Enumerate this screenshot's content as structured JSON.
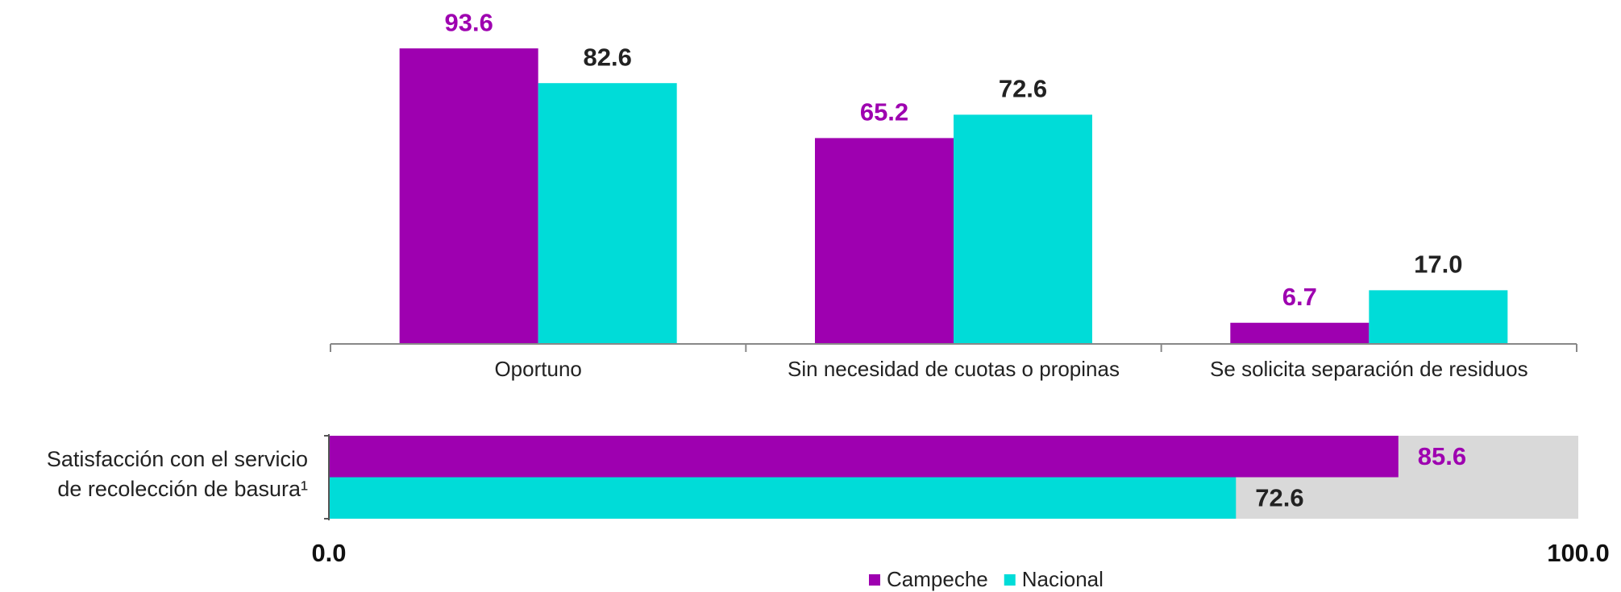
{
  "chart_data": [
    {
      "type": "bar",
      "categories": [
        "Oportuno",
        "Sin necesidad de cuotas o propinas",
        "Se solicita separación de residuos"
      ],
      "series": [
        {
          "color": "#9e00b0",
          "label_color": "#9e00b0",
          "values": [
            93.6,
            65.2,
            6.7
          ]
        },
        {
          "color": "#00dcd8",
          "label_color": "#222222",
          "values": [
            82.6,
            72.6,
            17.0
          ],
          "value_labels": [
            "82.6",
            "72.6",
            "17.0"
          ]
        }
      ],
      "ylim": [
        0,
        100
      ]
    },
    {
      "type": "hbar",
      "categories": [
        "Satisfacción con el servicio\nde recolección de basura¹"
      ],
      "series": [
        {
          "name": "Campeche",
          "color": "#9e00b0",
          "label_color": "#9e00b0",
          "values": [
            85.6
          ]
        },
        {
          "name": "Nacional",
          "color": "#00dcd8",
          "label_color": "#222222",
          "values": [
            72.6
          ]
        }
      ],
      "xlim": [
        0,
        100
      ],
      "xticks": [
        {
          "value": 0,
          "label": "0.0"
        },
        {
          "value": 100,
          "label": "100.0"
        }
      ]
    }
  ]
}
